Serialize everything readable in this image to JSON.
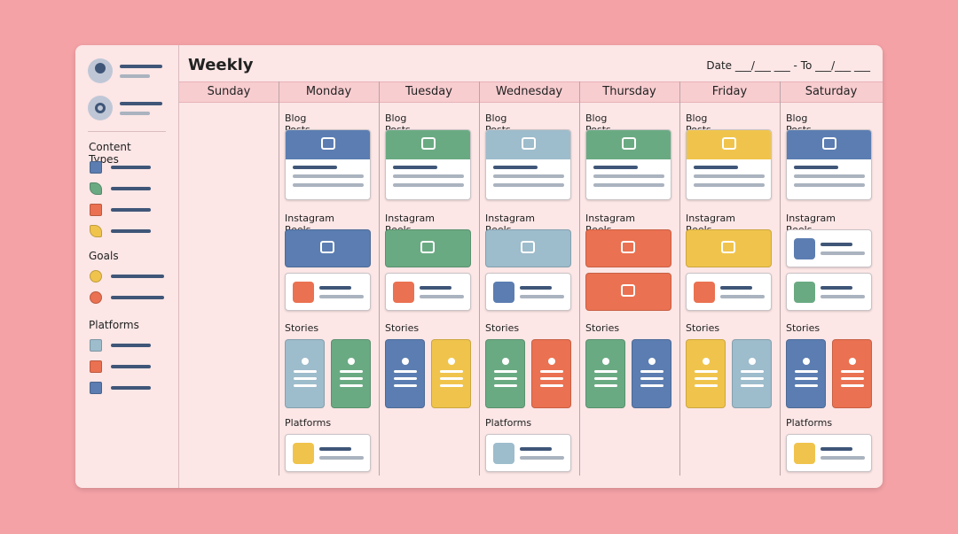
{
  "header": {
    "title": "Weekly",
    "date_range": "Date ___/___ ___ - To ___/___ ___"
  },
  "sidebar": {
    "sections": [
      "Content Types",
      "Goals",
      "Platforms"
    ]
  },
  "days": [
    "Sunday",
    "Monday",
    "Tuesday",
    "Wednesday",
    "Thursday",
    "Friday",
    "Saturday"
  ],
  "columns": [
    {
      "sections": []
    },
    {
      "sections": [
        "Blog Posts",
        "Instagram Reels",
        "Stories",
        "Platforms"
      ]
    },
    {
      "sections": [
        "Blog Posts",
        "Instagram Reels",
        "Stories"
      ]
    },
    {
      "sections": [
        "Blog Posts",
        "Instagram Reels",
        "Stories",
        "Platforms"
      ]
    },
    {
      "sections": [
        "Blog Posts",
        "Instagram Reels",
        "Stories"
      ]
    },
    {
      "sections": [
        "Blog Posts",
        "Instagram Reels",
        "Stories"
      ]
    },
    {
      "sections": [
        "Blog Posts",
        "Instagram Reels",
        "Stories",
        "Platforms"
      ]
    }
  ]
}
